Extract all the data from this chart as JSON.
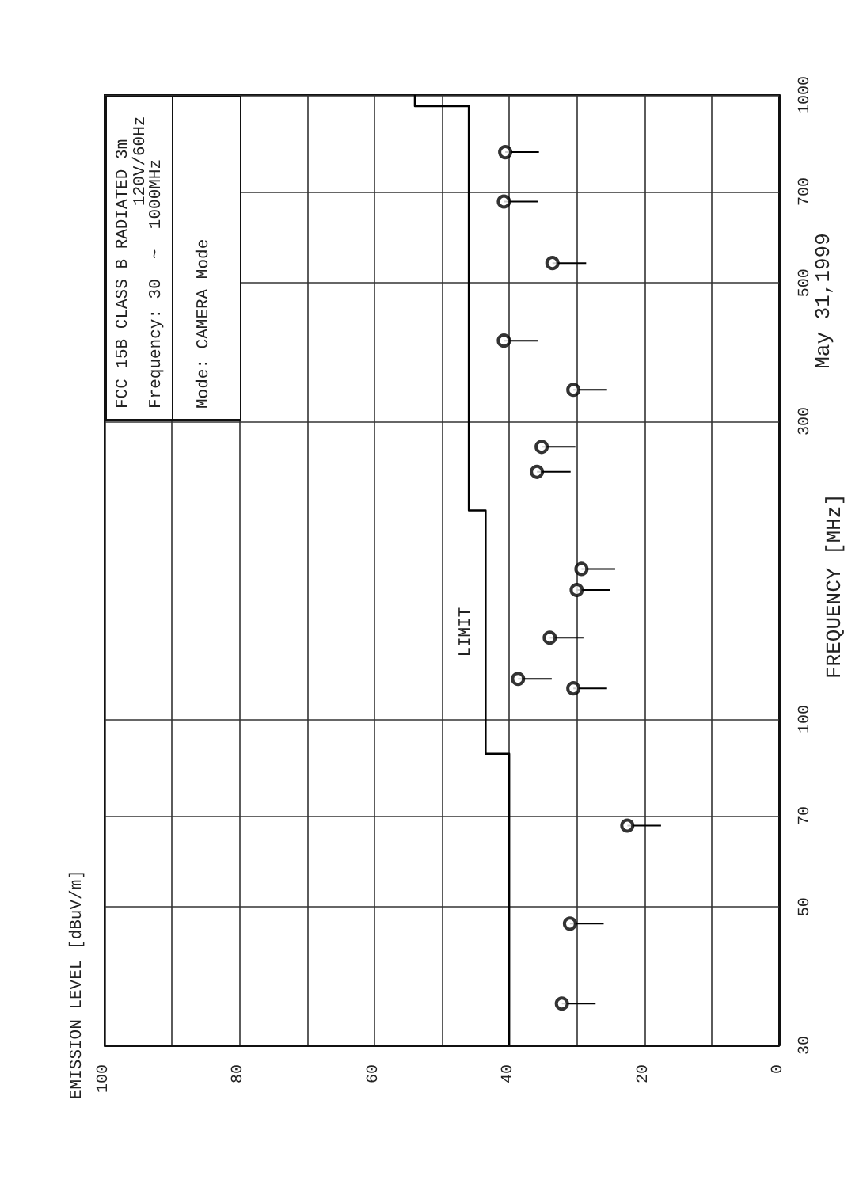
{
  "chart_data": {
    "type": "scatter",
    "subtitle": "May 31,1999",
    "ylabel": "FREQUENCY [MHz]",
    "annotations": [
      "FCC 15B CLASS B RADIATED 3m",
      "120V/60Hz",
      "Frequency: 30  ~  1000MHz",
      "Mode: CAMERA Mode",
      "EMISSION LEVEL [dBuV/m]"
    ],
    "log": "y",
    "xlim": [
      100,
      0
    ],
    "xticks": [
      100,
      80,
      60,
      40,
      20,
      0
    ],
    "ylim": [
      30,
      1000
    ],
    "yticks": [
      30,
      50,
      70,
      100,
      300,
      500,
      700,
      1000
    ],
    "grid": true,
    "marker": "circle",
    "series": [
      {
        "type": "line",
        "name": "LIMIT",
        "marker": "none",
        "color": "#000000",
        "x": [
          40,
          40,
          43.5,
          43.5,
          46,
          46,
          54,
          54
        ],
        "values": [
          30,
          88,
          88,
          216,
          216,
          960,
          960,
          1000
        ]
      },
      {
        "color": "#000000",
        "x": [
          32.2,
          31,
          22.5,
          30.5,
          38.7,
          34,
          30,
          29.3,
          35.9,
          35.2,
          30.5,
          40.8,
          33.6,
          40.8,
          40.6
        ],
        "values": [
          35,
          47,
          67.5,
          112,
          116,
          135,
          161,
          174,
          249,
          273,
          337,
          404,
          538,
          675,
          810
        ],
        "xerrors": [
          [
            27.2,
            32.2
          ],
          [
            26,
            31
          ],
          [
            17.5,
            22.5
          ],
          [
            25.5,
            30.5
          ],
          [
            33.7,
            38.7
          ],
          [
            29,
            34
          ],
          [
            25,
            30
          ],
          [
            24.3,
            29.3
          ],
          [
            30.9,
            35.9
          ],
          [
            30.2,
            35.2
          ],
          [
            25.5,
            30.5
          ],
          [
            35.8,
            40.8
          ],
          [
            28.6,
            33.6
          ],
          [
            35.8,
            40.8
          ],
          [
            35.6,
            40.6
          ]
        ]
      }
    ]
  }
}
